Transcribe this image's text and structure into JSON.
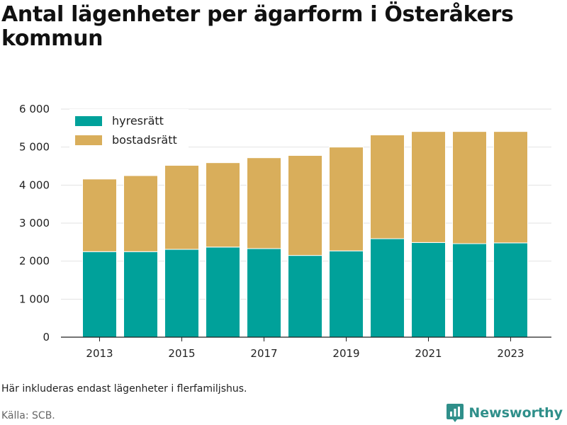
{
  "chart_data": {
    "type": "bar",
    "stacked": true,
    "title": "Antal lägenheter per ägarform i Österåkers kommun",
    "categories": [
      "2013",
      "2014",
      "2015",
      "2016",
      "2017",
      "2018",
      "2019",
      "2020",
      "2021",
      "2022",
      "2023"
    ],
    "x_tick_labels": [
      "2013",
      "2015",
      "2017",
      "2019",
      "2021",
      "2023"
    ],
    "series": [
      {
        "name": "hyresrätt",
        "color": "#00a19a",
        "values": [
          2250,
          2250,
          2310,
          2370,
          2330,
          2150,
          2270,
          2590,
          2490,
          2460,
          2480
        ]
      },
      {
        "name": "bostadsrätt",
        "color": "#d9ae5b",
        "values": [
          1910,
          2000,
          2210,
          2220,
          2390,
          2630,
          2730,
          2730,
          2920,
          2950,
          2930
        ]
      }
    ],
    "ylim": [
      0,
      6000
    ],
    "y_ticks": [
      0,
      1000,
      2000,
      3000,
      4000,
      5000,
      6000
    ],
    "y_tick_labels": [
      "0",
      "1 000",
      "2 000",
      "3 000",
      "4 000",
      "5 000",
      "6 000"
    ],
    "grid": true,
    "legend_position": "top-left"
  },
  "note": "Här inkluderas endast lägenheter i flerfamiljshus.",
  "source": "Källa: SCB.",
  "brand": {
    "name": "Newsworthy",
    "icon": "bar-chart-badge-icon",
    "color": "#2f8f8a"
  }
}
